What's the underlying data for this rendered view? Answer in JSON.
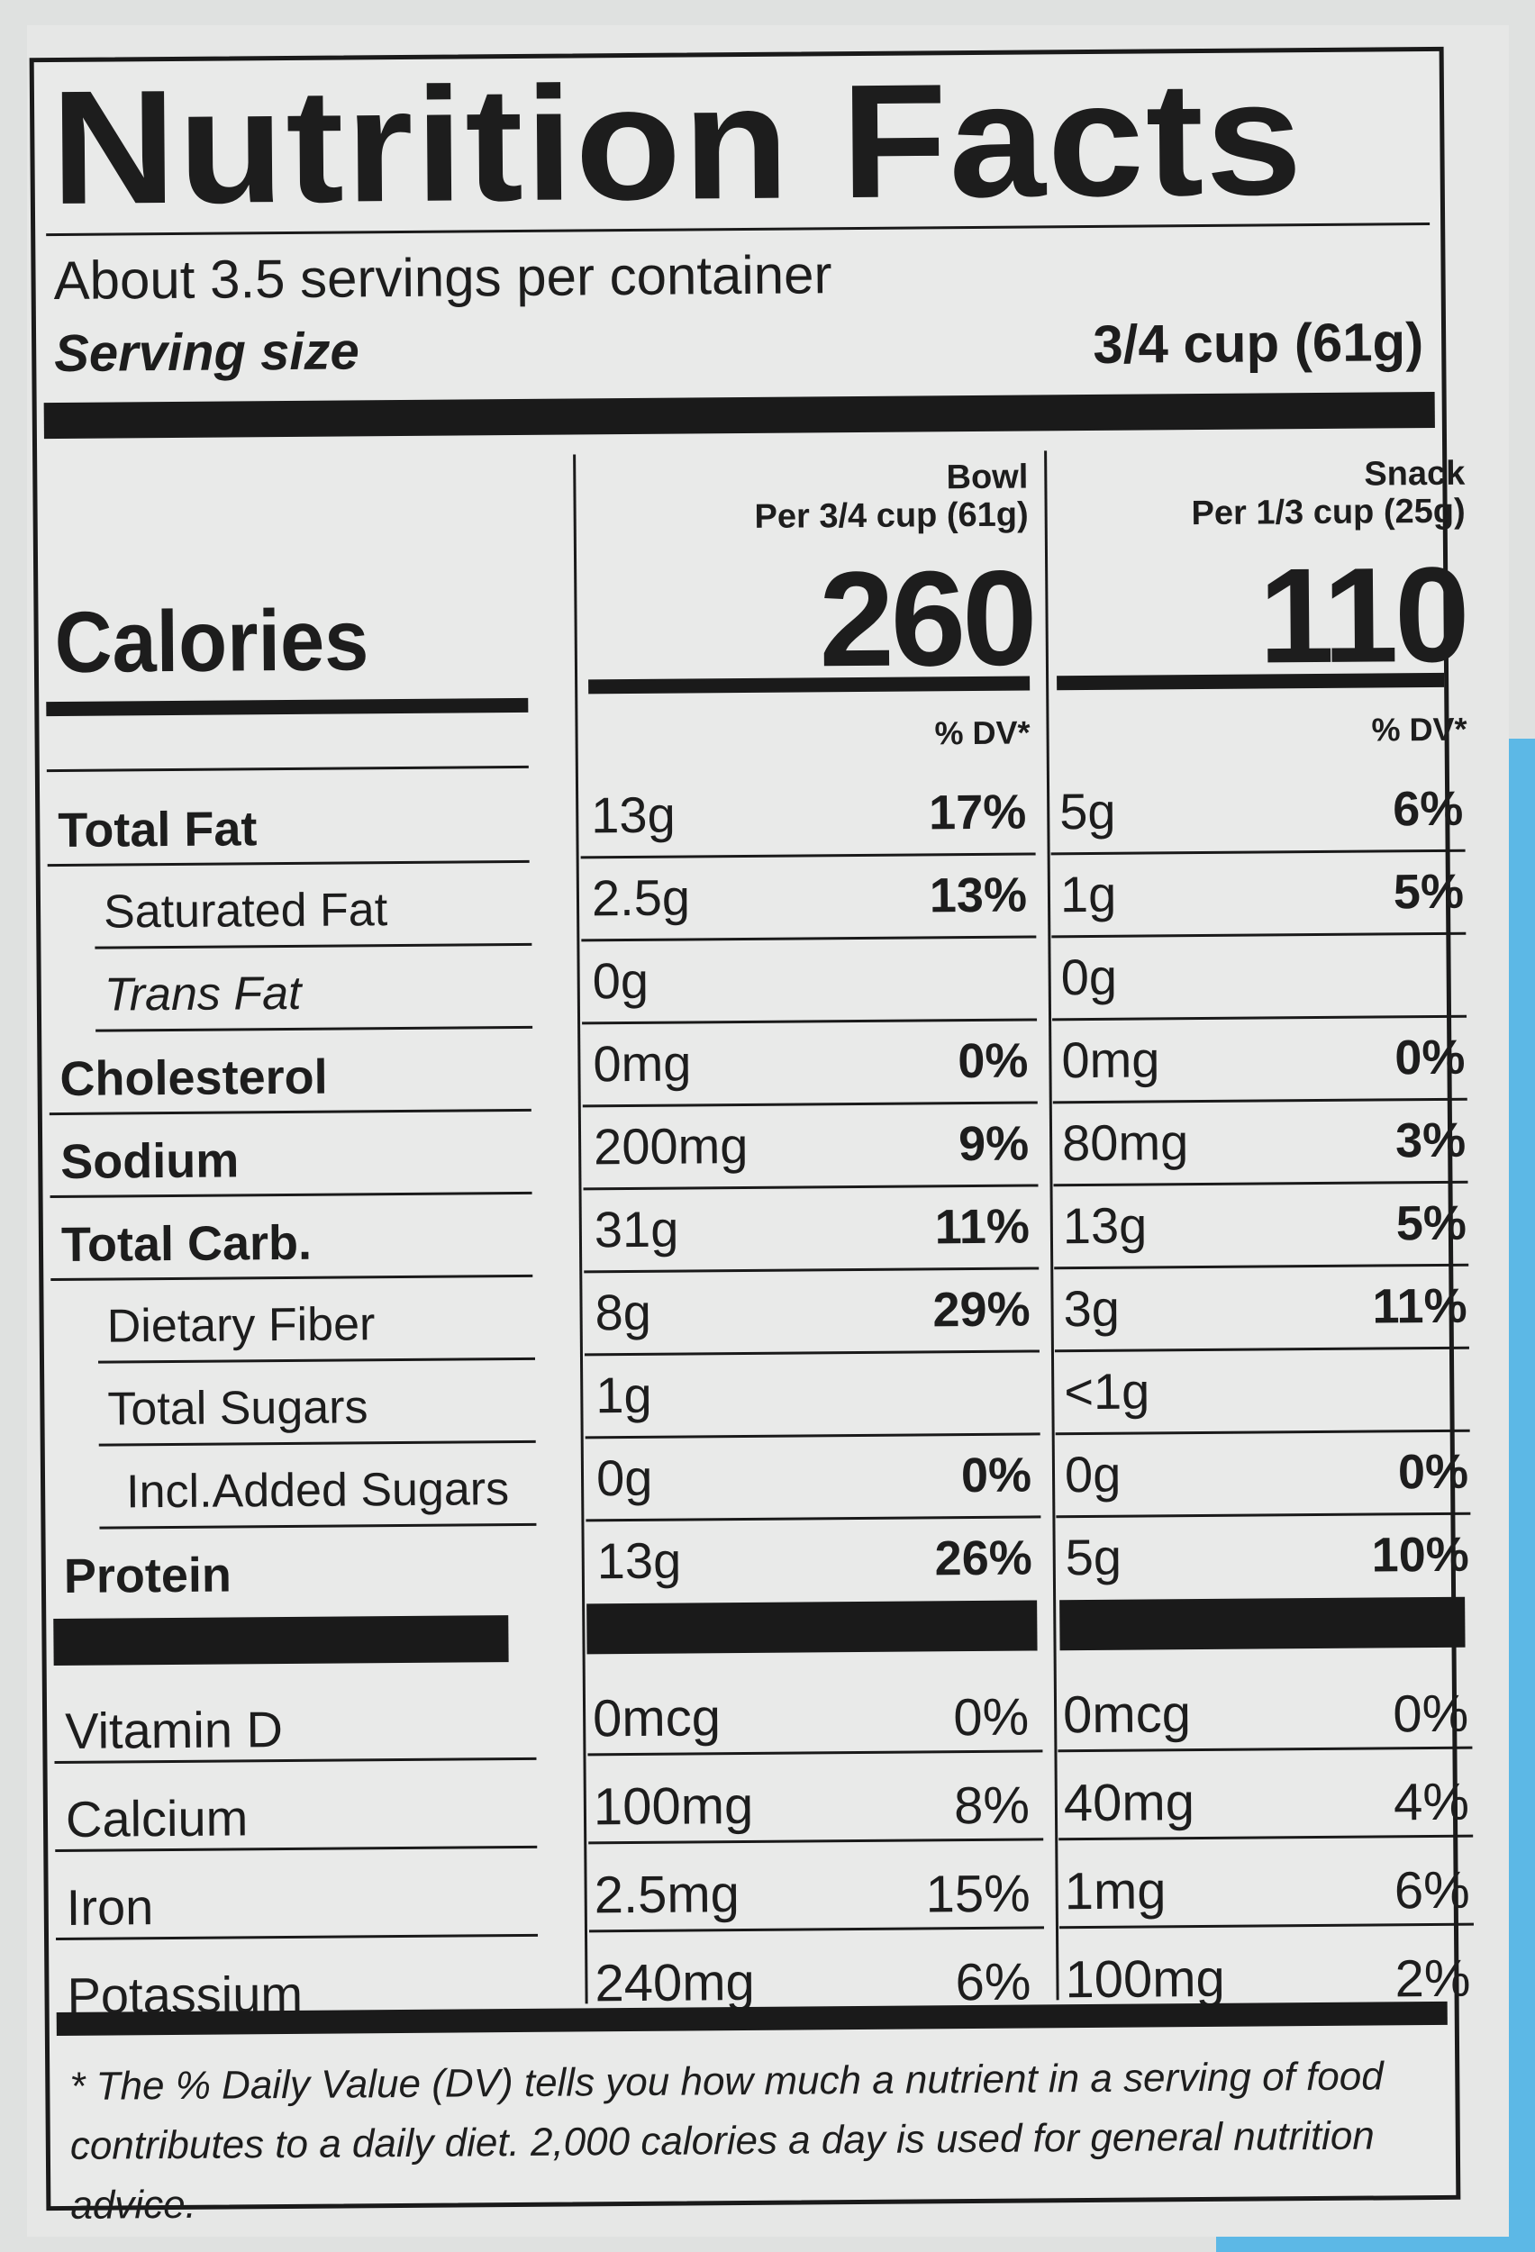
{
  "title": "Nutrition Facts",
  "servings_per_container": "About 3.5 servings per container",
  "serving_size_label": "Serving size",
  "serving_size_value": "3/4 cup (61g)",
  "calories_label": "Calories",
  "columns": [
    {
      "name": "Bowl",
      "per": "Per 3/4 cup (61g)",
      "calories": "260",
      "dv_header": "% DV*"
    },
    {
      "name": "Snack",
      "per": "Per 1/3 cup (25g)",
      "calories": "110",
      "dv_header": "% DV*"
    }
  ],
  "nutrients": [
    {
      "name": "Total Fat",
      "bold": true,
      "indent": 0,
      "bowl": "13g",
      "bowl_dv": "17%",
      "snack": "5g",
      "snack_dv": "6%"
    },
    {
      "name": "Saturated Fat",
      "bold": false,
      "indent": 1,
      "bowl": "2.5g",
      "bowl_dv": "13%",
      "snack": "1g",
      "snack_dv": "5%"
    },
    {
      "name": "Trans Fat",
      "bold": false,
      "indent": 1,
      "italic": true,
      "bowl": "0g",
      "bowl_dv": "",
      "snack": "0g",
      "snack_dv": ""
    },
    {
      "name": "Cholesterol",
      "bold": true,
      "indent": 0,
      "bowl": "0mg",
      "bowl_dv": "0%",
      "snack": "0mg",
      "snack_dv": "0%"
    },
    {
      "name": "Sodium",
      "bold": true,
      "indent": 0,
      "bowl": "200mg",
      "bowl_dv": "9%",
      "snack": "80mg",
      "snack_dv": "3%"
    },
    {
      "name": "Total Carb.",
      "bold": true,
      "indent": 0,
      "bowl": "31g",
      "bowl_dv": "11%",
      "snack": "13g",
      "snack_dv": "5%"
    },
    {
      "name": "Dietary Fiber",
      "bold": false,
      "indent": 1,
      "bowl": "8g",
      "bowl_dv": "29%",
      "snack": "3g",
      "snack_dv": "11%"
    },
    {
      "name": "Total Sugars",
      "bold": false,
      "indent": 1,
      "bowl": "1g",
      "bowl_dv": "",
      "snack": "<1g",
      "snack_dv": ""
    },
    {
      "name": "Incl.Added Sugars",
      "bold": false,
      "indent": 2,
      "bowl": "0g",
      "bowl_dv": "0%",
      "snack": "0g",
      "snack_dv": "0%"
    },
    {
      "name": "Protein",
      "bold": true,
      "indent": 0,
      "bowl": "13g",
      "bowl_dv": "26%",
      "snack": "5g",
      "snack_dv": "10%"
    }
  ],
  "vitamins": [
    {
      "name": "Vitamin D",
      "bowl": "0mcg",
      "bowl_dv": "0%",
      "snack": "0mcg",
      "snack_dv": "0%"
    },
    {
      "name": "Calcium",
      "bowl": "100mg",
      "bowl_dv": "8%",
      "snack": "40mg",
      "snack_dv": "4%"
    },
    {
      "name": "Iron",
      "bowl": "2.5mg",
      "bowl_dv": "15%",
      "snack": "1mg",
      "snack_dv": "6%"
    },
    {
      "name": "Potassium",
      "bowl": "240mg",
      "bowl_dv": "6%",
      "snack": "100mg",
      "snack_dv": "2%"
    }
  ],
  "footnote": "* The % Daily Value (DV) tells you how much a nutrient in a serving of food contributes to a daily diet. 2,000 calories a day is used for general nutrition advice."
}
